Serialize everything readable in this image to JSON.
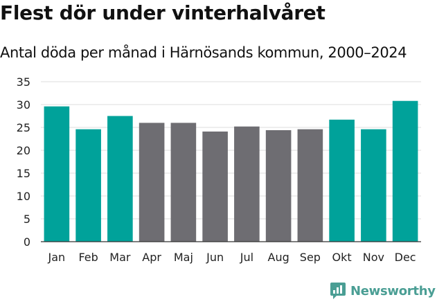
{
  "header": {
    "title": "Flest dör under vinterhalvåret",
    "subtitle": "Antal döda per månad i Härnösands kommun, 2000–2024"
  },
  "brand": {
    "name": "Newsworthy",
    "color": "#4a9e94"
  },
  "colors": {
    "winter": "#00a29a",
    "summer": "#6e6d72",
    "grid": "#dcdcdc",
    "axis": "#333333"
  },
  "chart_data": {
    "type": "bar",
    "title": "Flest dör under vinterhalvåret",
    "subtitle": "Antal döda per månad i Härnösands kommun, 2000–2024",
    "xlabel": "",
    "ylabel": "",
    "ylim": [
      0,
      35
    ],
    "yticks": [
      0,
      5,
      10,
      15,
      20,
      25,
      30,
      35
    ],
    "grid": true,
    "categories": [
      "Jan",
      "Feb",
      "Mar",
      "Apr",
      "Maj",
      "Jun",
      "Jul",
      "Aug",
      "Sep",
      "Okt",
      "Nov",
      "Dec"
    ],
    "values": [
      29.6,
      24.6,
      27.5,
      26.0,
      26.0,
      24.1,
      25.2,
      24.4,
      24.6,
      26.7,
      24.6,
      30.8
    ],
    "groups": [
      "winter",
      "winter",
      "winter",
      "summer",
      "summer",
      "summer",
      "summer",
      "summer",
      "summer",
      "winter",
      "winter",
      "winter"
    ]
  }
}
